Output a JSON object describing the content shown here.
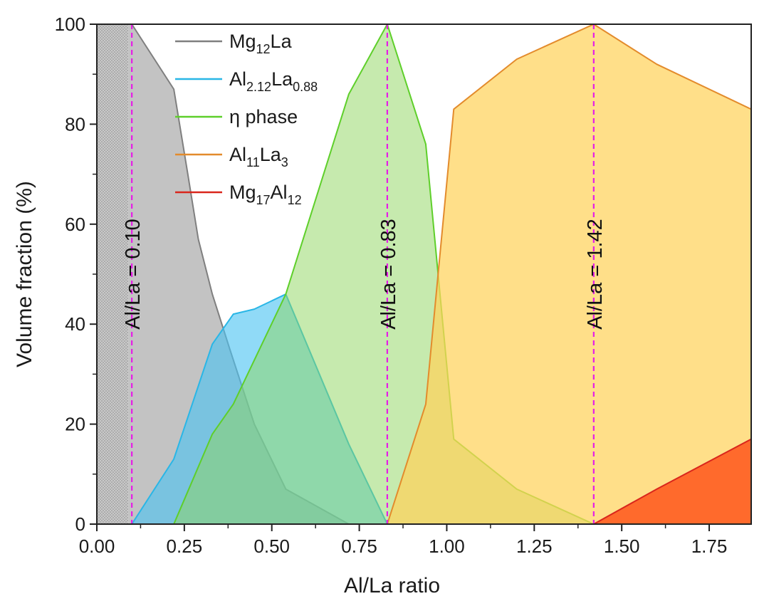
{
  "chart_data": {
    "type": "area",
    "title": "",
    "xlabel": "Al/La ratio",
    "ylabel": "Volume fraction (%)",
    "xlim": [
      0,
      1.87
    ],
    "ylim": [
      0,
      100
    ],
    "xticks": [
      0,
      0.25,
      0.5,
      0.75,
      1.0,
      1.25,
      1.5,
      1.75
    ],
    "xtick_labels": [
      "0.00",
      "0.25",
      "0.50",
      "0.75",
      "1.00",
      "1.25",
      "1.50",
      "1.75"
    ],
    "yticks": [
      0,
      20,
      40,
      60,
      80,
      100
    ],
    "ytick_labels": [
      "0",
      "20",
      "40",
      "60",
      "80",
      "100"
    ],
    "legend_position": "top-left",
    "hatched_region": {
      "x_from": 0,
      "x_to": 0.09,
      "color": "#b8b8b8"
    },
    "series": [
      {
        "name": "Mg12La",
        "label_parts": [
          [
            "Mg",
            ""
          ],
          [
            "12",
            "sub"
          ],
          [
            "La",
            ""
          ]
        ],
        "line_color": "#7f7f7f",
        "fill_color": "#9e9e9e",
        "fill_opacity": 0.62,
        "points": [
          [
            0.09,
            100
          ],
          [
            0.1,
            100
          ],
          [
            0.22,
            87
          ],
          [
            0.26,
            70
          ],
          [
            0.29,
            57
          ],
          [
            0.33,
            46
          ],
          [
            0.38,
            35
          ],
          [
            0.45,
            20
          ],
          [
            0.54,
            7
          ],
          [
            0.72,
            0
          ]
        ]
      },
      {
        "name": "Al2.12La0.88",
        "label_parts": [
          [
            "Al",
            ""
          ],
          [
            "2.12",
            "sub"
          ],
          [
            "La",
            ""
          ],
          [
            "0.88",
            "sub"
          ]
        ],
        "line_color": "#29b6e6",
        "fill_color": "#4cc4f2",
        "fill_opacity": 0.62,
        "points": [
          [
            0.1,
            0
          ],
          [
            0.22,
            13
          ],
          [
            0.33,
            36
          ],
          [
            0.39,
            42
          ],
          [
            0.45,
            43
          ],
          [
            0.54,
            46
          ],
          [
            0.72,
            16
          ],
          [
            0.83,
            0
          ]
        ]
      },
      {
        "name": "η phase",
        "label_parts": [
          [
            "η phase",
            ""
          ]
        ],
        "line_color": "#5ecf2a",
        "fill_color": "#8ed55e",
        "fill_opacity": 0.5,
        "points": [
          [
            0.22,
            0
          ],
          [
            0.33,
            18
          ],
          [
            0.39,
            24
          ],
          [
            0.54,
            46
          ],
          [
            0.72,
            86
          ],
          [
            0.83,
            100
          ],
          [
            0.94,
            76
          ],
          [
            1.02,
            17
          ],
          [
            1.2,
            7
          ],
          [
            1.42,
            0
          ]
        ]
      },
      {
        "name": "Al11La3",
        "label_parts": [
          [
            "Al",
            ""
          ],
          [
            "11",
            "sub"
          ],
          [
            "La",
            ""
          ],
          [
            "3",
            "sub"
          ]
        ],
        "line_color": "#e38b2c",
        "fill_color": "#ffd25c",
        "fill_opacity": 0.72,
        "points": [
          [
            0.83,
            0
          ],
          [
            0.94,
            24
          ],
          [
            1.02,
            83
          ],
          [
            1.2,
            93
          ],
          [
            1.42,
            100
          ],
          [
            1.6,
            92
          ],
          [
            1.87,
            83
          ]
        ]
      },
      {
        "name": "Mg17Al12",
        "label_parts": [
          [
            "Mg",
            ""
          ],
          [
            "17",
            "sub"
          ],
          [
            "Al",
            ""
          ],
          [
            "12",
            "sub"
          ]
        ],
        "line_color": "#d9261c",
        "fill_color": "#ff5a1f",
        "fill_opacity": 0.88,
        "points": [
          [
            1.42,
            0
          ],
          [
            1.6,
            7
          ],
          [
            1.87,
            17
          ]
        ]
      }
    ],
    "annotations": [
      {
        "x": 0.1,
        "text": "Al/La = 0.10",
        "color": "#e61ee6"
      },
      {
        "x": 0.83,
        "text": "Al/La = 0.83",
        "color": "#e61ee6"
      },
      {
        "x": 1.42,
        "text": "Al/La = 1.42",
        "color": "#e61ee6"
      }
    ]
  }
}
